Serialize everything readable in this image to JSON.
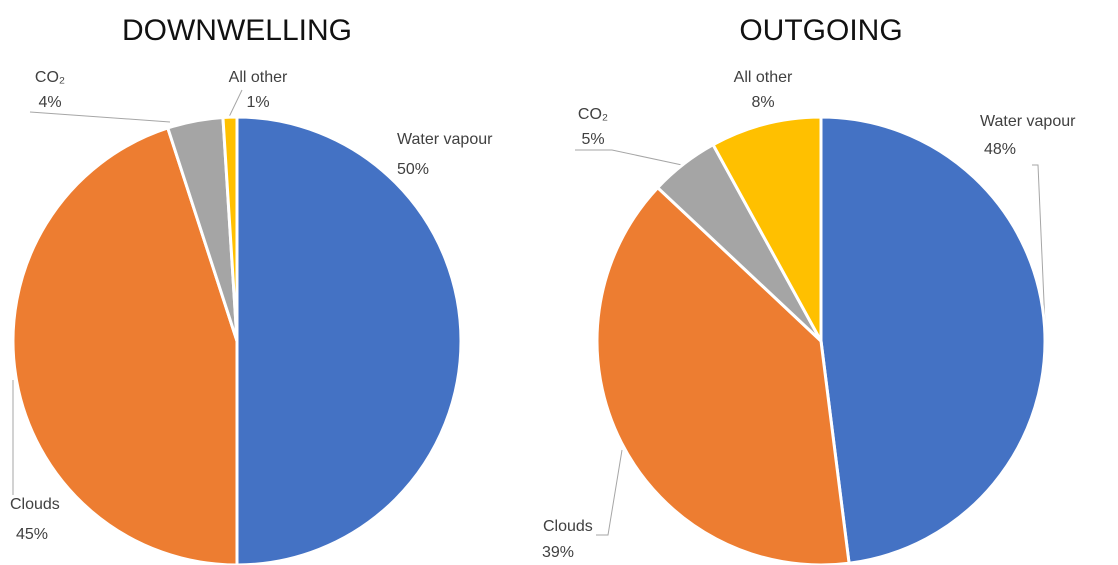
{
  "chart_data": [
    {
      "type": "pie",
      "title": "DOWNWELLING",
      "categories": [
        "Water vapour",
        "Clouds",
        "CO₂",
        "All other"
      ],
      "values": [
        50,
        45,
        4,
        1
      ],
      "value_labels": [
        "50%",
        "45%",
        "4%",
        "1%"
      ],
      "colors": [
        "#4472c4",
        "#ed7d31",
        "#a5a5a5",
        "#ffc000"
      ]
    },
    {
      "type": "pie",
      "title": "OUTGOING",
      "categories": [
        "Water vapour",
        "Clouds",
        "CO₂",
        "All other"
      ],
      "values": [
        48,
        39,
        5,
        8
      ],
      "value_labels": [
        "48%",
        "39%",
        "5%",
        "8%"
      ],
      "colors": [
        "#4472c4",
        "#ed7d31",
        "#a5a5a5",
        "#ffc000"
      ]
    }
  ]
}
